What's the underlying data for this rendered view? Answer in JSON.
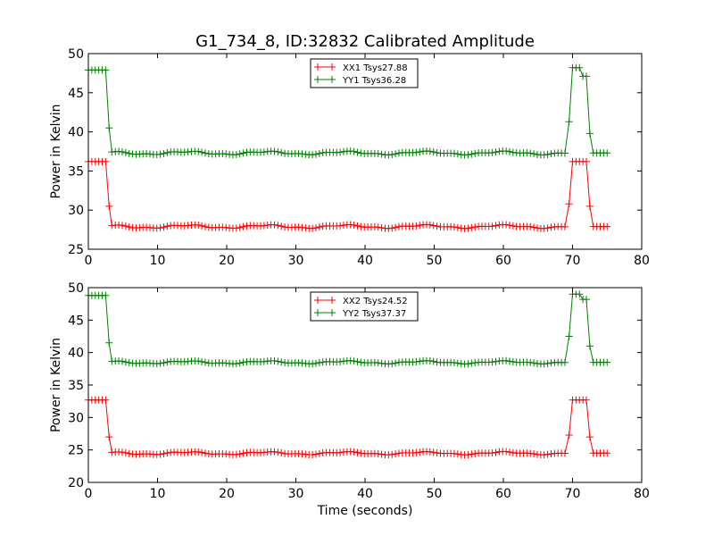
{
  "title": "G1_734_8, ID:32832 Calibrated Amplitude",
  "chart_data": [
    {
      "type": "line",
      "ylabel": "Power in Kelvin",
      "xlabel": "",
      "xlim": [
        0,
        80
      ],
      "ylim": [
        25,
        50
      ],
      "xticks": [
        "0",
        "10",
        "20",
        "30",
        "40",
        "50",
        "60",
        "70",
        "80"
      ],
      "yticks": [
        "25",
        "30",
        "35",
        "40",
        "45",
        "50"
      ],
      "grid": false,
      "legend": "top-center",
      "series": [
        {
          "name": "XX1 Tsys27.88",
          "color": "#ff0000",
          "segments": [
            {
              "from": 0.0,
              "to": 2.5,
              "value": 36.2
            },
            {
              "from": 3.0,
              "to": 3.0,
              "value": 30.5
            },
            {
              "from": 3.4,
              "to": 69.0,
              "value": 27.9
            },
            {
              "from": 69.5,
              "to": 69.5,
              "value": 30.8
            },
            {
              "from": 70.0,
              "to": 72.0,
              "value": 36.2
            },
            {
              "from": 72.5,
              "to": 72.5,
              "value": 30.5
            },
            {
              "from": 73.0,
              "to": 75.0,
              "value": 27.9
            }
          ]
        },
        {
          "name": "YY1 Tsys36.28",
          "color": "#008000",
          "segments": [
            {
              "from": 0.0,
              "to": 2.5,
              "value": 47.9
            },
            {
              "from": 3.0,
              "to": 3.0,
              "value": 40.5
            },
            {
              "from": 3.4,
              "to": 69.0,
              "value": 37.3
            },
            {
              "from": 69.5,
              "to": 69.5,
              "value": 41.3
            },
            {
              "from": 70.0,
              "to": 71.0,
              "value": 48.2
            },
            {
              "from": 71.5,
              "to": 72.0,
              "value": 47.1
            },
            {
              "from": 72.5,
              "to": 72.5,
              "value": 39.8
            },
            {
              "from": 73.0,
              "to": 75.0,
              "value": 37.3
            }
          ]
        }
      ]
    },
    {
      "type": "line",
      "ylabel": "Power in Kelvin",
      "xlabel": "Time (seconds)",
      "xlim": [
        0,
        80
      ],
      "ylim": [
        20,
        50
      ],
      "xticks": [
        "0",
        "10",
        "20",
        "30",
        "40",
        "50",
        "60",
        "70",
        "80"
      ],
      "yticks": [
        "20",
        "25",
        "30",
        "35",
        "40",
        "45",
        "50"
      ],
      "grid": false,
      "legend": "top-center",
      "series": [
        {
          "name": "XX2 Tsys24.52",
          "color": "#ff0000",
          "segments": [
            {
              "from": 0.0,
              "to": 2.5,
              "value": 32.7
            },
            {
              "from": 3.0,
              "to": 3.0,
              "value": 27.0
            },
            {
              "from": 3.4,
              "to": 69.0,
              "value": 24.5
            },
            {
              "from": 69.5,
              "to": 69.5,
              "value": 27.3
            },
            {
              "from": 70.0,
              "to": 72.0,
              "value": 32.7
            },
            {
              "from": 72.5,
              "to": 72.5,
              "value": 27.0
            },
            {
              "from": 73.0,
              "to": 75.0,
              "value": 24.5
            }
          ]
        },
        {
          "name": "YY2 Tsys37.37",
          "color": "#008000",
          "segments": [
            {
              "from": 0.0,
              "to": 2.5,
              "value": 48.8
            },
            {
              "from": 3.0,
              "to": 3.0,
              "value": 41.5
            },
            {
              "from": 3.4,
              "to": 69.0,
              "value": 38.5
            },
            {
              "from": 69.5,
              "to": 69.5,
              "value": 42.5
            },
            {
              "from": 70.0,
              "to": 71.0,
              "value": 49.0
            },
            {
              "from": 71.5,
              "to": 72.0,
              "value": 48.2
            },
            {
              "from": 72.5,
              "to": 72.5,
              "value": 41.0
            },
            {
              "from": 73.0,
              "to": 75.0,
              "value": 38.5
            }
          ]
        }
      ]
    }
  ]
}
